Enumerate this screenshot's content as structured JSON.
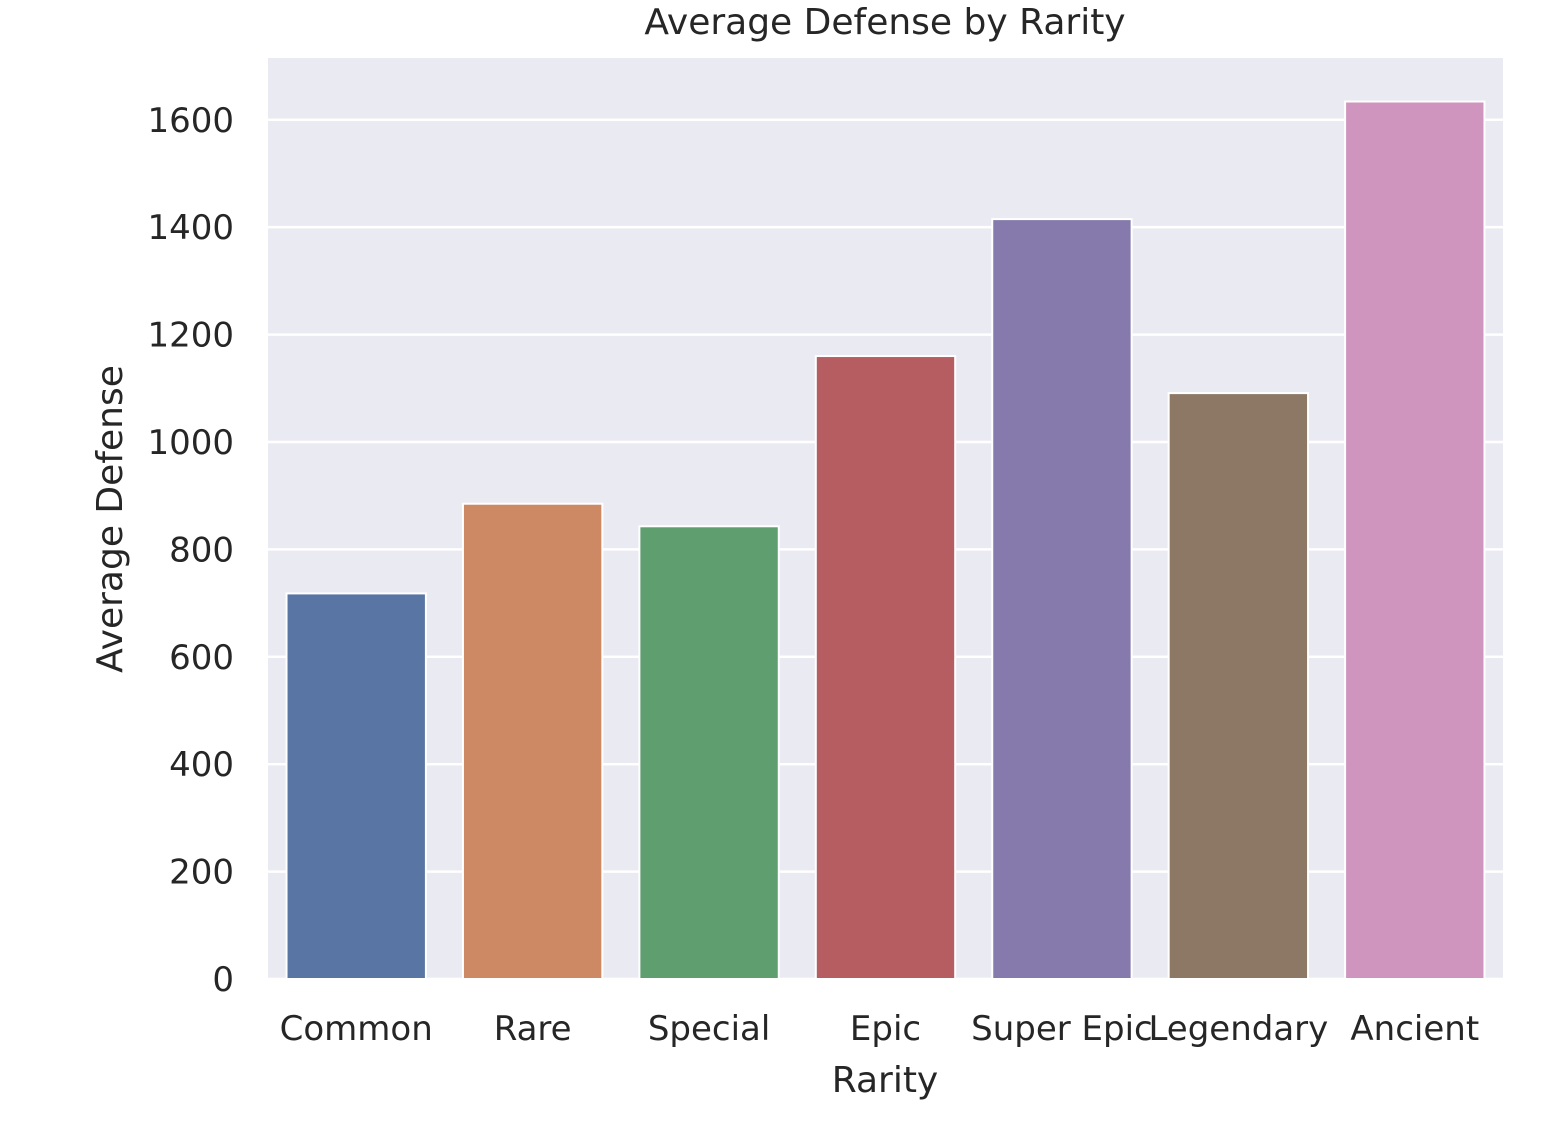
{
  "chart_data": {
    "type": "bar",
    "title": "Average Defense by Rarity",
    "xlabel": "Rarity",
    "ylabel": "Average Defense",
    "categories": [
      "Common",
      "Rare",
      "Special",
      "Epic",
      "Super Epic",
      "Legendary",
      "Ancient"
    ],
    "values": [
      718,
      885,
      843,
      1160,
      1415,
      1091,
      1634
    ],
    "colors": [
      "#5975a4",
      "#cc8963",
      "#5f9e6e",
      "#b55d60",
      "#857aab",
      "#8d7866",
      "#d095bf"
    ],
    "ylim": [
      0,
      1715
    ],
    "yticks": [
      0,
      200,
      400,
      600,
      800,
      1000,
      1200,
      1400,
      1600
    ],
    "grid": true,
    "plot_background": "#eaeaf2",
    "grid_color": "#ffffff"
  }
}
